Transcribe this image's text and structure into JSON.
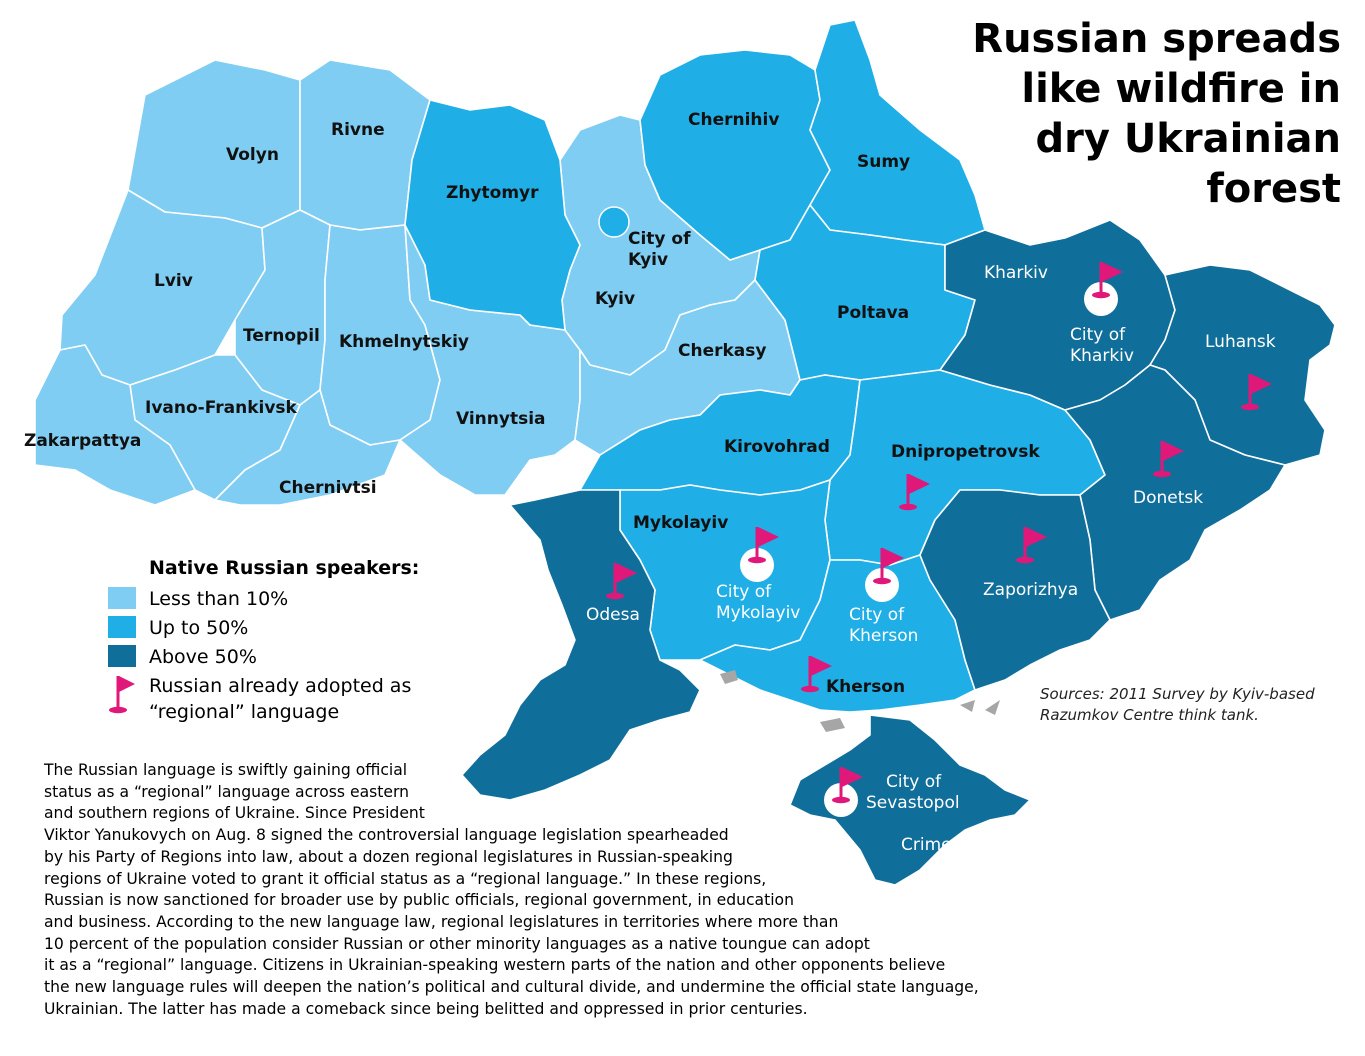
{
  "title_lines": [
    "Russian spreads",
    "like wildfire in",
    "dry Ukrainian",
    "forest"
  ],
  "colors": {
    "lt10": "#7fcdf2",
    "up50": "#1faee6",
    "gt50": "#0f6e9a",
    "flag": "#e0187a"
  },
  "legend": {
    "title": "Native Russian speakers:",
    "items": [
      {
        "swatch": "lt10",
        "label": "Less than 10%"
      },
      {
        "swatch": "up50",
        "label": "Up to 50%"
      },
      {
        "swatch": "gt50",
        "label": "Above 50%"
      },
      {
        "swatch": "flag",
        "label_lines": [
          "Russian already adopted as",
          "“regional” language"
        ]
      }
    ]
  },
  "regions": [
    {
      "name": "Volyn",
      "category": "lt10",
      "regional_language": false
    },
    {
      "name": "Rivne",
      "category": "lt10",
      "regional_language": false
    },
    {
      "name": "Lviv",
      "category": "lt10",
      "regional_language": false
    },
    {
      "name": "Ternopil",
      "category": "lt10",
      "regional_language": false
    },
    {
      "name": "Khmelnytskiy",
      "category": "lt10",
      "regional_language": false
    },
    {
      "name": "Ivano-Frankivsk",
      "category": "lt10",
      "regional_language": false
    },
    {
      "name": "Zakarpattya",
      "category": "lt10",
      "regional_language": false
    },
    {
      "name": "Chernivtsi",
      "category": "lt10",
      "regional_language": false
    },
    {
      "name": "Vinnytsia",
      "category": "lt10",
      "regional_language": false
    },
    {
      "name": "Kyiv",
      "category": "lt10",
      "regional_language": false
    },
    {
      "name": "Cherkasy",
      "category": "lt10",
      "regional_language": false
    },
    {
      "name": "Zhytomyr",
      "category": "up50",
      "regional_language": false
    },
    {
      "name": "Chernihiv",
      "category": "up50",
      "regional_language": false
    },
    {
      "name": "Sumy",
      "category": "up50",
      "regional_language": false
    },
    {
      "name": "Poltava",
      "category": "up50",
      "regional_language": false
    },
    {
      "name": "Kirovohrad",
      "category": "up50",
      "regional_language": false
    },
    {
      "name": "Dnipropetrovsk",
      "category": "up50",
      "regional_language": true
    },
    {
      "name": "Mykolayiv",
      "category": "up50",
      "regional_language": false
    },
    {
      "name": "Kherson",
      "category": "up50",
      "regional_language": true
    },
    {
      "name": "Kharkiv",
      "category": "gt50",
      "regional_language": true
    },
    {
      "name": "Luhansk",
      "category": "gt50",
      "regional_language": true
    },
    {
      "name": "Donetsk",
      "category": "gt50",
      "regional_language": true
    },
    {
      "name": "Zaporizhya",
      "category": "gt50",
      "regional_language": true
    },
    {
      "name": "Odesa",
      "category": "gt50",
      "regional_language": true
    },
    {
      "name": "Crimea",
      "category": "gt50",
      "regional_language": false
    }
  ],
  "cities": [
    {
      "name_lines": [
        "City of",
        "Kyiv"
      ],
      "regional_language": false
    },
    {
      "name_lines": [
        "City of",
        "Kharkiv"
      ],
      "regional_language": true
    },
    {
      "name_lines": [
        "City of",
        "Mykolayiv"
      ],
      "regional_language": true
    },
    {
      "name_lines": [
        "City of",
        "Kherson"
      ],
      "regional_language": true
    },
    {
      "name_lines": [
        "City of",
        "Sevastopol"
      ],
      "regional_language": true
    }
  ],
  "source_lines": [
    "Sources: 2011 Survey by Kyiv-based",
    "Razumkov Centre think tank."
  ],
  "body_lines": [
    "The Russian language is swiftly gaining official",
    "status as a “regional” language across eastern",
    "and southern regions of Ukraine. Since President",
    "Viktor Yanukovych on Aug. 8 signed the controversial language legislation spearheaded",
    "by his Party of Regions into law, about a dozen regional legislatures in Russian-speaking",
    "regions of Ukraine voted to grant it official status as a “regional language.” In these regions,",
    "Russian is now sanctioned for broader use by public officials, regional government, in education",
    "and business. According to the new language law, regional legislatures in territories where more than",
    "10 percent of the population consider Russian or other minority languages as a native toungue can adopt",
    "it as a “regional” language. Citizens in Ukrainian-speaking western parts of the nation and other opponents believe",
    "the new language rules will deepen the nation’s political and cultural divide, and undermine the official state language,",
    "Ukrainian. The latter has made a comeback since being belitted and oppressed in prior centuries."
  ]
}
